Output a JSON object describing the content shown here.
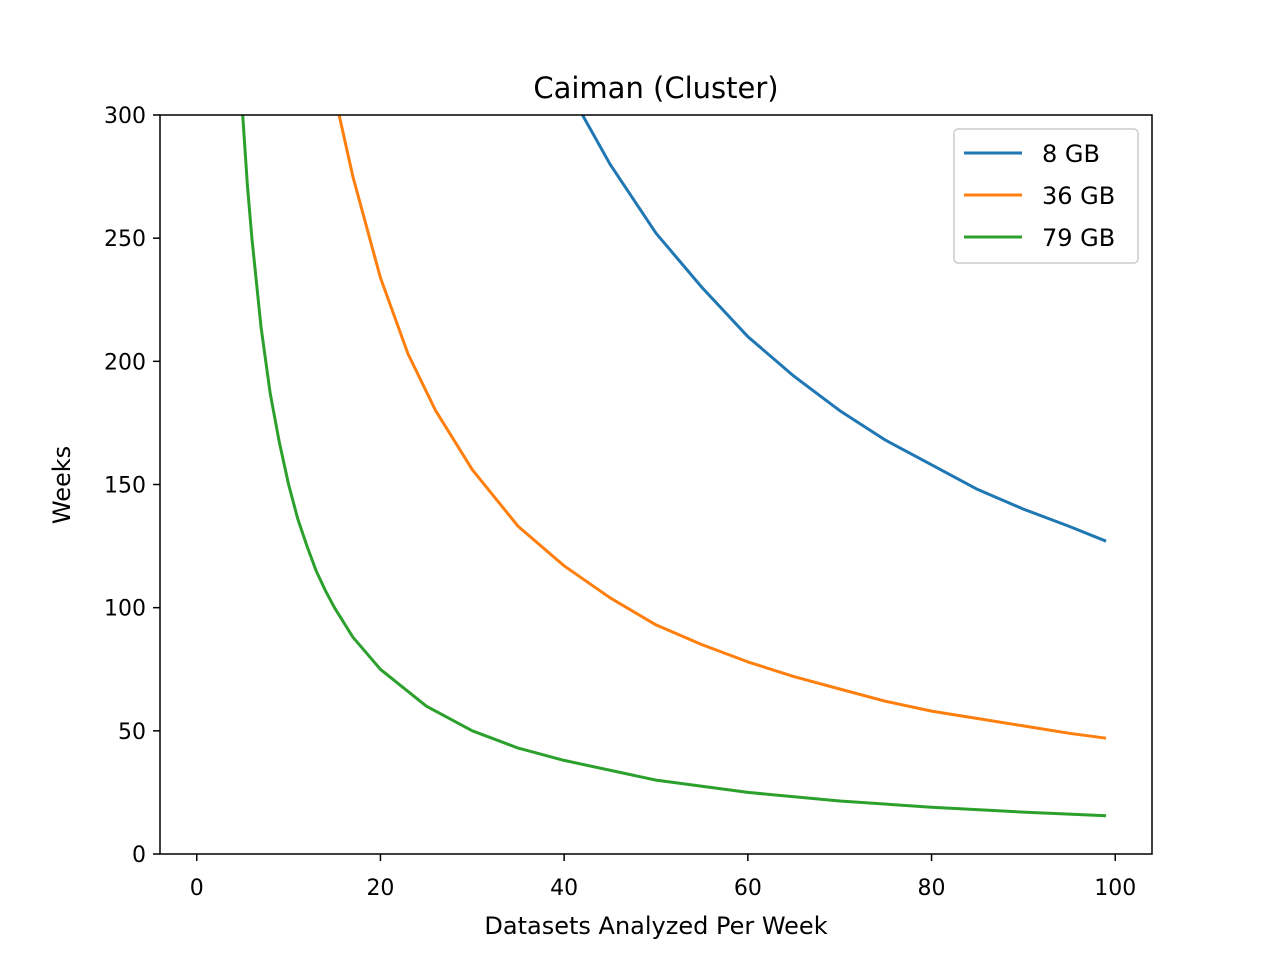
{
  "chart_data": {
    "type": "line",
    "title": "Caiman (Cluster)",
    "xlabel": "Datasets Analyzed Per Week",
    "ylabel": "Weeks",
    "xlim": [
      -4,
      104
    ],
    "ylim": [
      0,
      300
    ],
    "xticks": [
      "0",
      "20",
      "40",
      "60",
      "80",
      "100"
    ],
    "yticks": [
      "0",
      "50",
      "100",
      "150",
      "200",
      "250",
      "300"
    ],
    "grid": false,
    "legend_position": "top-right",
    "series": [
      {
        "name": "8 GB",
        "color": "#1f77b4",
        "x": [
          42,
          45,
          50,
          55,
          60,
          65,
          70,
          75,
          80,
          85,
          90,
          95,
          99
        ],
        "y": [
          300,
          280,
          252,
          230,
          210,
          194,
          180,
          168,
          158,
          148,
          140,
          133,
          127
        ]
      },
      {
        "name": "36 GB",
        "color": "#ff7f0e",
        "x": [
          15.5,
          17,
          20,
          23,
          26,
          30,
          35,
          40,
          45,
          50,
          55,
          60,
          65,
          70,
          75,
          80,
          85,
          90,
          95,
          99
        ],
        "y": [
          300,
          275,
          234,
          203,
          180,
          156,
          133,
          117,
          104,
          93,
          85,
          78,
          72,
          67,
          62,
          58,
          55,
          52,
          49,
          47
        ]
      },
      {
        "name": "79 GB",
        "color": "#2ca02c",
        "x": [
          5,
          5.5,
          6,
          7,
          8,
          9,
          10,
          11,
          12,
          13,
          14,
          15,
          17,
          20,
          25,
          30,
          35,
          40,
          50,
          60,
          70,
          80,
          90,
          99
        ],
        "y": [
          300,
          272,
          250,
          214,
          187,
          167,
          150,
          136,
          125,
          115,
          107,
          100,
          88,
          75,
          60,
          50,
          43,
          38,
          30,
          25,
          21.5,
          19,
          17,
          15.5
        ]
      }
    ]
  }
}
